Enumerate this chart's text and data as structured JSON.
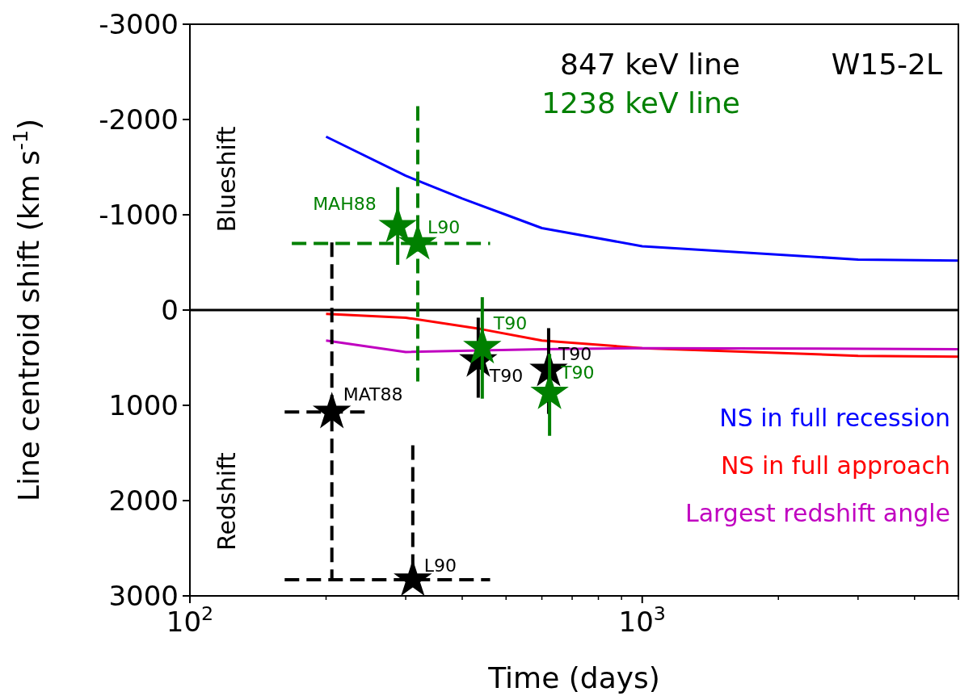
{
  "chart_data": {
    "type": "line",
    "xlabel": "Time (days)",
    "ylabel": "Line centroid shift (km s$^{-1}$)",
    "log": "x",
    "xlim": [
      100,
      5000
    ],
    "xticks": [
      {
        "value": 100,
        "label": "10$^{2}$"
      },
      {
        "value": 200,
        "label": null
      },
      {
        "value": 300,
        "label": null
      },
      {
        "value": 400,
        "label": null
      },
      {
        "value": 500,
        "label": null
      },
      {
        "value": 600,
        "label": null
      },
      {
        "value": 700,
        "label": null
      },
      {
        "value": 800,
        "label": null
      },
      {
        "value": 900,
        "label": null
      },
      {
        "value": 1000,
        "label": "10$^{3}$"
      },
      {
        "value": 2000,
        "label": null
      },
      {
        "value": 3000,
        "label": null
      },
      {
        "value": 4000,
        "label": null
      },
      {
        "value": 5000,
        "label": null
      }
    ],
    "ylim": [
      3000,
      -3000
    ],
    "yticks": [
      -3000,
      -2000,
      -1000,
      0,
      1000,
      2000,
      3000
    ],
    "grid": false,
    "legend": "right",
    "ref_lines": [
      {
        "axis": "y",
        "value": 0,
        "color": "#000000"
      }
    ],
    "annotations": [
      "W15-2L",
      "Blueshift",
      "Redshift"
    ],
    "series": [
      {
        "name": "NS in full recession",
        "color": "#0000ff",
        "x": [
          200,
          300,
          400,
          500,
          600,
          1000,
          3000,
          5000
        ],
        "values": [
          -1820,
          -1410,
          -1170,
          -1000,
          -860,
          -670,
          -530,
          -520
        ]
      },
      {
        "name": "NS in full approach",
        "color": "#ff0000",
        "x": [
          200,
          300,
          440,
          600,
          1000,
          3000,
          5000
        ],
        "values": [
          40,
          80,
          200,
          320,
          400,
          480,
          490
        ]
      },
      {
        "name": "Largest redshift angle",
        "color": "#c000c0",
        "x": [
          200,
          300,
          600,
          1000,
          5000
        ],
        "values": [
          320,
          440,
          410,
          400,
          410
        ]
      },
      {
        "name": "847 keV line",
        "type": "scatter",
        "marker": "star",
        "color": "#000000",
        "x": [
          434,
          621
        ],
        "values": [
          530,
          630
        ],
        "errors": [
          [
            80,
            920
          ],
          [
            190,
            1090
          ]
        ],
        "value_labels": [
          "T90",
          "T90"
        ]
      },
      {
        "type": "scatter",
        "marker": "star",
        "line_style": "dashed",
        "color": "#000000",
        "x": [
          206,
          311
        ],
        "values": [
          1070,
          2830
        ],
        "errors": [
          [
            -710,
            2830
          ],
          [
            1420,
            2830
          ]
        ],
        "xerrors": [
          [
            162,
            247
          ],
          [
            162,
            461
          ]
        ],
        "value_labels": [
          "MAT88",
          "L90"
        ]
      },
      {
        "name": "1238 keV line",
        "type": "scatter",
        "marker": "star",
        "color": "#008000",
        "x": [
          288,
          443,
          624
        ],
        "values": [
          -880,
          390,
          870
        ],
        "errors": [
          [
            -1290,
            -475
          ],
          [
            -135,
            930
          ],
          [
            460,
            1320
          ]
        ],
        "value_labels": [
          "MAH88",
          "T90",
          "T90"
        ]
      },
      {
        "type": "scatter",
        "marker": "star",
        "line_style": "dashed",
        "color": "#008000",
        "x": [
          319
        ],
        "values": [
          -700
        ],
        "errors": [
          [
            -2140,
            750
          ]
        ],
        "xerrors": [
          [
            168,
            461
          ]
        ],
        "value_labels": [
          "L90"
        ]
      }
    ]
  }
}
